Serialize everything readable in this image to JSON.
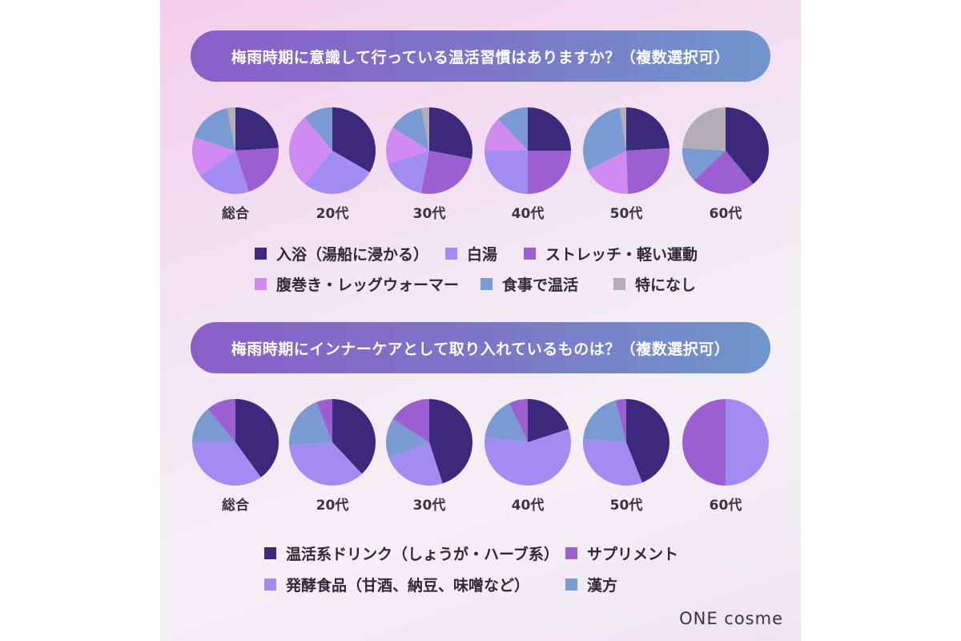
{
  "colors": {
    "dark_purple": "#3b2a7c",
    "lavender": "#a08cf2",
    "violet": "#9b5fd1",
    "pink_violet": "#d08af2",
    "steel_blue": "#7c9ad2",
    "gray": "#b3adb8"
  },
  "section1": {
    "title": "梅雨時期に意識して行っている温活習慣はありますか？（複数選択可）",
    "legend": [
      {
        "label": "入浴（湯船に浸かる）",
        "color": "#3b2a7c"
      },
      {
        "label": "白湯",
        "color": "#a08cf2"
      },
      {
        "label": "ストレッチ・軽い運動",
        "color": "#9b5fd1"
      },
      {
        "label": "腹巻き・レッグウォーマー",
        "color": "#d08af2"
      },
      {
        "label": "食事で温活",
        "color": "#7c9ad2"
      },
      {
        "label": "特になし",
        "color": "#b3adb8"
      }
    ]
  },
  "section2": {
    "title": "梅雨時期にインナーケアとして取り入れているものは？（複数選択可）",
    "legend": [
      {
        "label": "温活系ドリンク（しょうが・ハーブ系）",
        "color": "#3b2a7c"
      },
      {
        "label": "サプリメント",
        "color": "#9b5fd1"
      },
      {
        "label": "発酵食品（甘酒、納豆、味噌など）",
        "color": "#a08cf2"
      },
      {
        "label": "漢方",
        "color": "#7c9ad2"
      }
    ]
  },
  "brand": "ONE cosme",
  "chart_data": [
    {
      "type": "pie",
      "title": "梅雨時期に意識して行っている温活習慣はありますか？（複数選択可）",
      "categories": [
        "入浴（湯船に浸かる）",
        "白湯",
        "ストレッチ・軽い運動",
        "腹巻き・レッグウォーマー",
        "食事で温活",
        "特になし"
      ],
      "colors": [
        "#3b2a7c",
        "#a08cf2",
        "#9b5fd1",
        "#d08af2",
        "#7c9ad2",
        "#b3adb8"
      ],
      "pies": [
        {
          "label": "総合",
          "values": [
            24,
            20,
            21,
            15,
            17,
            3
          ]
        },
        {
          "label": "20代",
          "values": [
            30,
            25,
            0,
            25,
            10,
            0
          ]
        },
        {
          "label": "30代",
          "values": [
            28,
            17,
            25,
            14,
            13,
            3
          ]
        },
        {
          "label": "40代",
          "values": [
            25,
            25,
            25,
            13,
            12,
            0
          ]
        },
        {
          "label": "50代",
          "values": [
            20,
            0,
            21,
            15,
            25,
            2
          ]
        },
        {
          "label": "60代",
          "values": [
            39,
            0,
            24,
            0,
            13,
            24
          ]
        }
      ],
      "series_order_clockwise_from_top": [
        "入浴（湯船に浸かる）",
        "ストレッチ・軽い運動",
        "白湯",
        "腹巻き・レッグウォーマー",
        "食事で温活",
        "特になし"
      ]
    },
    {
      "type": "pie",
      "title": "梅雨時期にインナーケアとして取り入れているものは？（複数選択可）",
      "categories": [
        "温活系ドリンク（しょうが・ハーブ系）",
        "サプリメント",
        "発酵食品（甘酒、納豆、味噌など）",
        "漢方"
      ],
      "colors": [
        "#3b2a7c",
        "#9b5fd1",
        "#a08cf2",
        "#7c9ad2"
      ],
      "pies": [
        {
          "label": "総合",
          "values": [
            40,
            11,
            35,
            14
          ]
        },
        {
          "label": "20代",
          "values": [
            38,
            6,
            36,
            20
          ]
        },
        {
          "label": "30代",
          "values": [
            45,
            16,
            24,
            15
          ]
        },
        {
          "label": "40代",
          "values": [
            20,
            7,
            57,
            16
          ]
        },
        {
          "label": "50代",
          "values": [
            44,
            4,
            32,
            20
          ]
        },
        {
          "label": "60代",
          "values": [
            0,
            50,
            50,
            0
          ]
        }
      ]
    }
  ]
}
